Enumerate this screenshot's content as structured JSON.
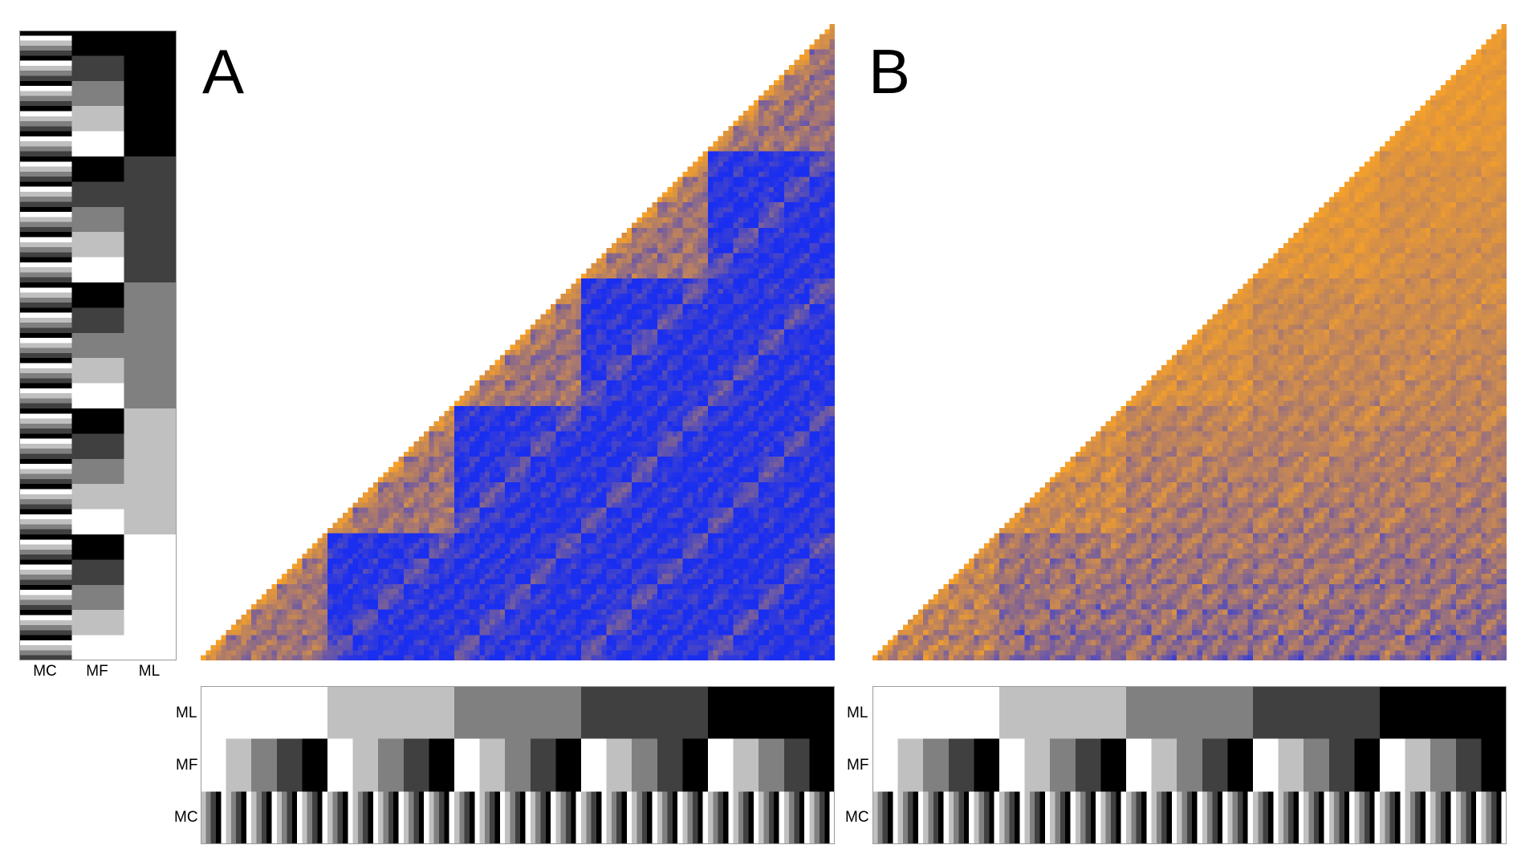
{
  "figure": {
    "panel_letters": [
      "A",
      "B"
    ],
    "legend_labels": [
      "MC",
      "MF",
      "ML"
    ]
  },
  "colors": {
    "similar": "#f7a128",
    "dissimilar": "#1a2ef0",
    "levels": [
      "#ffffff",
      "#c0c0c0",
      "#808080",
      "#404040",
      "#000000"
    ]
  },
  "chart_data": [
    {
      "type": "heatmap",
      "panel": "A",
      "shape": "lower-triangular",
      "stimuli_count": 125,
      "factors": {
        "ML": {
          "levels": 5,
          "block_size": 25
        },
        "MF": {
          "levels": 5,
          "block_size": 5
        },
        "MC": {
          "levels": 5,
          "block_size": 1
        }
      },
      "colormap": [
        "#f7a128",
        "#1a2ef0"
      ]
    },
    {
      "type": "heatmap",
      "panel": "B",
      "shape": "lower-triangular",
      "stimuli_count": 125,
      "factors": {
        "ML": {
          "levels": 5,
          "block_size": 25
        },
        "MF": {
          "levels": 5,
          "block_size": 5
        },
        "MC": {
          "levels": 5,
          "block_size": 1
        }
      },
      "colormap": [
        "#f7a128",
        "#1a2ef0"
      ]
    }
  ]
}
